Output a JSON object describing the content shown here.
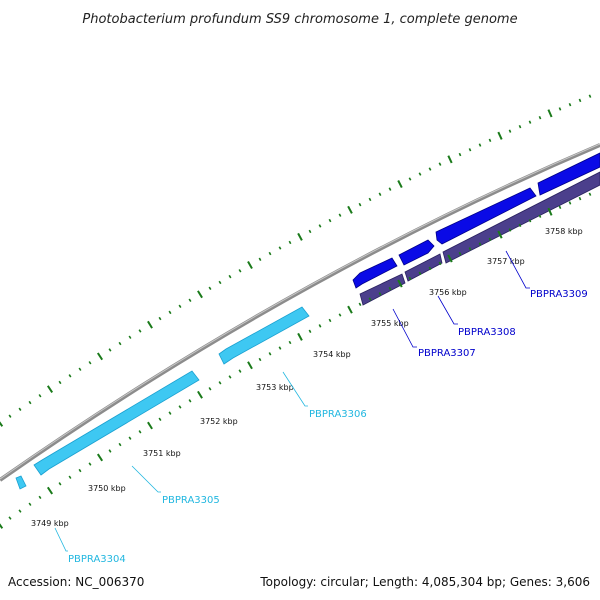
{
  "title": "Photobacterium profundum SS9 chromosome 1, complete genome",
  "footer": {
    "accession": "Accession: NC_006370",
    "summary": "Topology: circular; Length: 4,085,304 bp; Genes: 3,606"
  },
  "colors": {
    "backbone": "#8c8c8c",
    "backbone_highlight": "#c8c8c8",
    "tick": "#1a7a1a",
    "gene_cyan": "#3ec8f2",
    "gene_cyan_dark": "#1aa0d0",
    "gene_blue": "#0a0ae6",
    "gene_blue_dark": "#00008a",
    "gene_purple": "#4b3f8c",
    "gene_purple_dark": "#2a2260",
    "label_cyan": "#22b7e0",
    "label_blue": "#0000cc"
  },
  "ticks": [
    {
      "label": "3749 kbp"
    },
    {
      "label": "3750 kbp"
    },
    {
      "label": "3751 kbp"
    },
    {
      "label": "3752 kbp"
    },
    {
      "label": "3753 kbp"
    },
    {
      "label": "3754 kbp"
    },
    {
      "label": "3755 kbp"
    },
    {
      "label": "3756 kbp"
    },
    {
      "label": "3757 kbp"
    },
    {
      "label": "3758 kbp"
    }
  ],
  "gene_labels": [
    {
      "name": "PBPRA3304",
      "color": "label_cyan"
    },
    {
      "name": "PBPRA3305",
      "color": "label_cyan"
    },
    {
      "name": "PBPRA3306",
      "color": "label_cyan"
    },
    {
      "name": "PBPRA3307",
      "color": "label_blue"
    },
    {
      "name": "PBPRA3308",
      "color": "label_blue"
    },
    {
      "name": "PBPRA3309",
      "color": "label_blue"
    }
  ]
}
